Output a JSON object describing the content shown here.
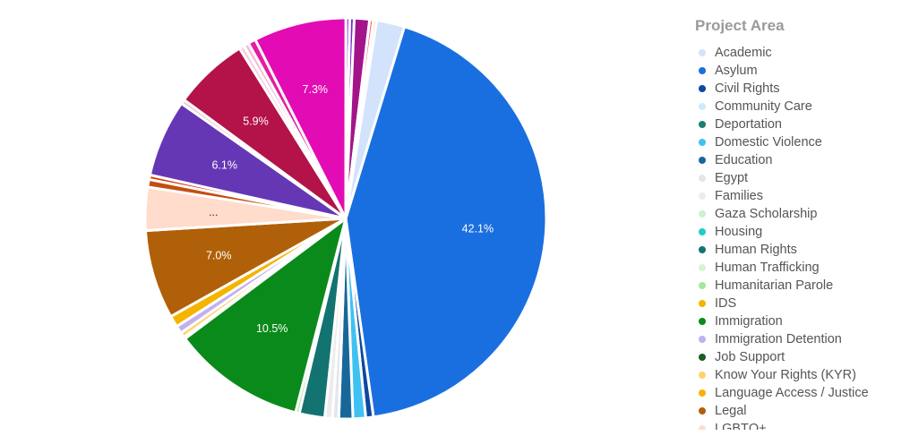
{
  "legend_title": "Project Area",
  "chart_data": {
    "type": "pie",
    "slices": [
      {
        "name": "Asylum",
        "value": 42.1,
        "color": "#1a6fe0",
        "label": "42.1%"
      },
      {
        "name": "Civil Rights",
        "value": 0.6,
        "color": "#0d47a1",
        "label": ""
      },
      {
        "name": "Domestic Violence",
        "value": 1.0,
        "color": "#3fc2f2",
        "label": ""
      },
      {
        "name": "Education",
        "value": 1.1,
        "color": "#17679a",
        "label": ""
      },
      {
        "name": "Egypt",
        "value": 0.5,
        "color": "#e3e6ec",
        "label": ""
      },
      {
        "name": "Families",
        "value": 0.6,
        "color": "#ececec",
        "label": ""
      },
      {
        "name": "Human Rights",
        "value": 2.0,
        "color": "#137370",
        "label": ""
      },
      {
        "name": "Humanitarian Parole",
        "value": 0.3,
        "color": "#a8e6a0",
        "label": ""
      },
      {
        "name": "Immigration",
        "value": 10.5,
        "color": "#0a8a1a",
        "label": "10.5%"
      },
      {
        "name": "Job Support",
        "value": 0.15,
        "color": "#1b5e20",
        "label": ""
      },
      {
        "name": "Know Your Rights (KYR)",
        "value": 0.4,
        "color": "#ffd36b",
        "label": ""
      },
      {
        "name": "Immigration Detention",
        "value": 0.6,
        "color": "#c2b0f0",
        "label": ""
      },
      {
        "name": "Language Access / Justice",
        "value": 0.9,
        "color": "#f4b400",
        "label": ""
      },
      {
        "name": "Legal",
        "value": 7.0,
        "color": "#b06008",
        "label": "7.0%"
      },
      {
        "name": "LGBTQ+",
        "value": 3.4,
        "color": "#ffdccc",
        "label": "..."
      },
      {
        "name": "",
        "value": 0.6,
        "color": "#c44e12",
        "label": ""
      },
      {
        "name": "",
        "value": 0.35,
        "color": "#d63b0a",
        "label": ""
      },
      {
        "name": "",
        "value": 6.1,
        "color": "#6537b5",
        "label": "6.1%"
      },
      {
        "name": "",
        "value": 0.35,
        "color": "#f0c8dc",
        "label": ""
      },
      {
        "name": "",
        "value": 5.9,
        "color": "#b31348",
        "label": "5.9%"
      },
      {
        "name": "",
        "value": 0.4,
        "color": "#f7cfe2",
        "label": ""
      },
      {
        "name": "",
        "value": 0.4,
        "color": "#f3bdd6",
        "label": ""
      },
      {
        "name": "",
        "value": 0.6,
        "color": "#e21fa0",
        "label": ""
      },
      {
        "name": "",
        "value": 7.3,
        "color": "#e30bb3",
        "label": "7.3%"
      },
      {
        "name": "",
        "value": 0.3,
        "color": "#7b3fe4",
        "label": ""
      },
      {
        "name": "",
        "value": 0.35,
        "color": "#7a2ac9",
        "label": ""
      },
      {
        "name": "",
        "value": 1.2,
        "color": "#a3148a",
        "label": ""
      },
      {
        "name": "",
        "value": 0.3,
        "color": "#ff6b81",
        "label": ""
      },
      {
        "name": "",
        "value": 0.25,
        "color": "#ffc46b",
        "label": ""
      },
      {
        "name": "Academic",
        "value": 2.2,
        "color": "#d3e3fc",
        "label": ""
      }
    ]
  },
  "legend": [
    {
      "label": "Academic",
      "color": "#d3e3fc"
    },
    {
      "label": "Asylum",
      "color": "#1a6fe0"
    },
    {
      "label": "Civil Rights",
      "color": "#0d47a1"
    },
    {
      "label": "Community Care",
      "color": "#c9ecfb"
    },
    {
      "label": "Deportation",
      "color": "#1b7f74"
    },
    {
      "label": "Domestic Violence",
      "color": "#3fc2f2"
    },
    {
      "label": "Education",
      "color": "#17679a"
    },
    {
      "label": "Egypt",
      "color": "#e3e6ec"
    },
    {
      "label": "Families",
      "color": "#ececec"
    },
    {
      "label": "Gaza Scholarship",
      "color": "#ccf2cf"
    },
    {
      "label": "Housing",
      "color": "#1ccfc4"
    },
    {
      "label": "Human Rights",
      "color": "#137370"
    },
    {
      "label": "Human Trafficking",
      "color": "#d4f5d0"
    },
    {
      "label": "Humanitarian Parole",
      "color": "#a8e6a0"
    },
    {
      "label": "IDS",
      "color": "#f4b400"
    },
    {
      "label": "Immigration",
      "color": "#0a8a1a"
    },
    {
      "label": "Immigration Detention",
      "color": "#c2b0f0"
    },
    {
      "label": "Job Support",
      "color": "#1b5e20"
    },
    {
      "label": "Know Your Rights (KYR)",
      "color": "#ffd36b"
    },
    {
      "label": "Language Access / Justice",
      "color": "#f4b400"
    },
    {
      "label": "Legal",
      "color": "#b06008"
    },
    {
      "label": "LGBTQ+",
      "color": "#ffdccc"
    }
  ]
}
